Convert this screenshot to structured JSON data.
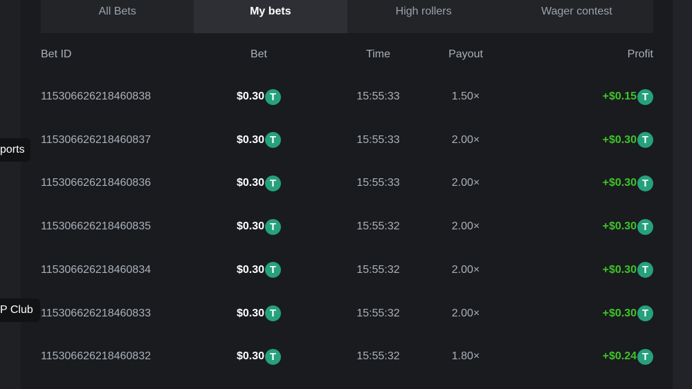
{
  "tabs": [
    {
      "label": "All Bets"
    },
    {
      "label": "My bets",
      "active": true
    },
    {
      "label": "High rollers"
    },
    {
      "label": "Wager contest"
    }
  ],
  "columns": {
    "bet_id": "Bet ID",
    "bet": "Bet",
    "time": "Time",
    "payout": "Payout",
    "profit": "Profit"
  },
  "coin_icon": "tether-usdt-icon",
  "coin_glyph": "T",
  "colors": {
    "profit": "#3dc429",
    "coin": "#26a17b"
  },
  "rows": [
    {
      "id": "115306626218460838",
      "bet": "$0.30",
      "time": "15:55:33",
      "payout": "1.50×",
      "profit": "+$0.15"
    },
    {
      "id": "115306626218460837",
      "bet": "$0.30",
      "time": "15:55:33",
      "payout": "2.00×",
      "profit": "+$0.30"
    },
    {
      "id": "115306626218460836",
      "bet": "$0.30",
      "time": "15:55:33",
      "payout": "2.00×",
      "profit": "+$0.30"
    },
    {
      "id": "115306626218460835",
      "bet": "$0.30",
      "time": "15:55:32",
      "payout": "2.00×",
      "profit": "+$0.30"
    },
    {
      "id": "115306626218460834",
      "bet": "$0.30",
      "time": "15:55:32",
      "payout": "2.00×",
      "profit": "+$0.30"
    },
    {
      "id": "115306626218460833",
      "bet": "$0.30",
      "time": "15:55:32",
      "payout": "2.00×",
      "profit": "+$0.30"
    },
    {
      "id": "115306626218460832",
      "bet": "$0.30",
      "time": "15:55:32",
      "payout": "1.80×",
      "profit": "+$0.24"
    }
  ],
  "tooltips": [
    "ports",
    "P Club"
  ]
}
